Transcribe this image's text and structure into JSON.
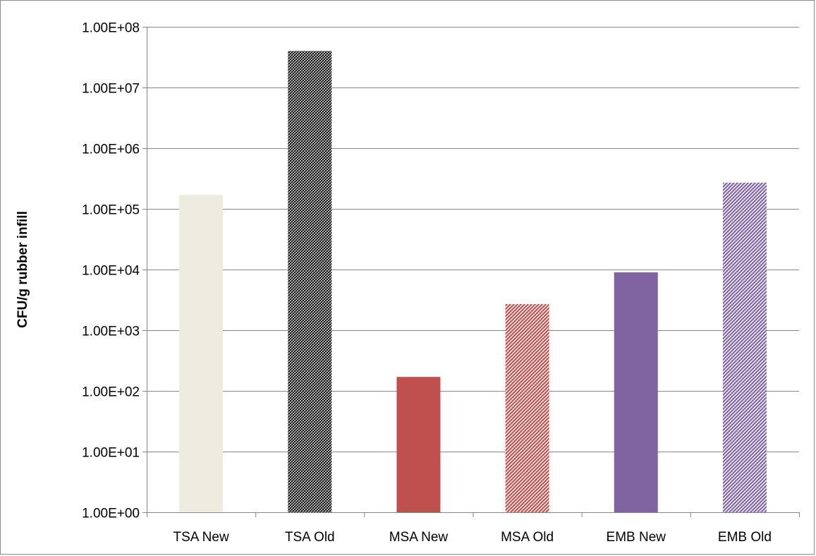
{
  "chart_data": {
    "type": "bar",
    "title": "",
    "xlabel": "",
    "ylabel": "CFU/g rubber infill",
    "yscale": "log",
    "ylim": [
      1,
      100000000
    ],
    "yticks": [
      "1.00E+00",
      "1.00E+01",
      "1.00E+02",
      "1.00E+03",
      "1.00E+04",
      "1.00E+05",
      "1.00E+06",
      "1.00E+07",
      "1.00E+08"
    ],
    "categories": [
      "TSA New",
      "TSA Old",
      "MSA New",
      "MSA Old",
      "EMB New",
      "EMB Old"
    ],
    "values": [
      170000,
      40000000,
      170,
      2700,
      9000,
      270000
    ],
    "grid": true,
    "legend": "none",
    "bar_styles": [
      {
        "color": "#eeece1",
        "pattern": "solid"
      },
      {
        "color": "#000000",
        "pattern": "fine-hatch"
      },
      {
        "color": "#c0504d",
        "pattern": "solid"
      },
      {
        "color": "#c0504d",
        "pattern": "hatch"
      },
      {
        "color": "#8064a2",
        "pattern": "solid"
      },
      {
        "color": "#8064a2",
        "pattern": "hatch"
      }
    ]
  }
}
